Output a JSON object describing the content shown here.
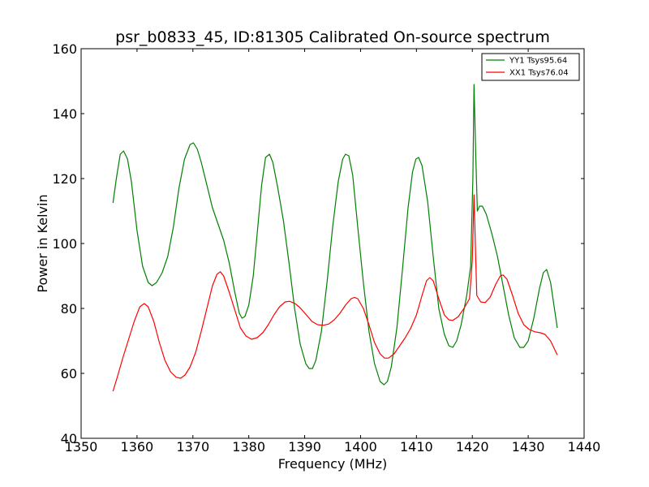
{
  "chart_data": {
    "type": "line",
    "title": "psr_b0833_45, ID:81305 Calibrated On-source spectrum",
    "xlabel": "Frequency (MHz)",
    "ylabel": "Power in Kelvin",
    "xlim": [
      1350,
      1440
    ],
    "ylim": [
      40,
      160
    ],
    "xticks": [
      "1350",
      "1360",
      "1370",
      "1380",
      "1390",
      "1400",
      "1410",
      "1420",
      "1430",
      "1440"
    ],
    "yticks": [
      "40",
      "60",
      "80",
      "100",
      "120",
      "140",
      "160"
    ],
    "grid": false,
    "legend_position": "top-right",
    "series": [
      {
        "name": "YY1 Tsys95.64",
        "color": "#008000",
        "points": [
          [
            1355.7,
            112.5
          ],
          [
            1356.3,
            120
          ],
          [
            1357.0,
            127.5
          ],
          [
            1357.6,
            128.5
          ],
          [
            1358.3,
            126
          ],
          [
            1359.0,
            119
          ],
          [
            1360.0,
            104
          ],
          [
            1361.0,
            93
          ],
          [
            1362.0,
            88
          ],
          [
            1362.7,
            87
          ],
          [
            1363.5,
            88
          ],
          [
            1364.5,
            91
          ],
          [
            1365.5,
            96
          ],
          [
            1366.5,
            105
          ],
          [
            1367.5,
            117
          ],
          [
            1368.5,
            126
          ],
          [
            1369.5,
            130.5
          ],
          [
            1370.1,
            131
          ],
          [
            1370.8,
            129
          ],
          [
            1371.5,
            125
          ],
          [
            1372.5,
            118
          ],
          [
            1373.5,
            111
          ],
          [
            1374.5,
            106
          ],
          [
            1375.5,
            101
          ],
          [
            1376.5,
            94
          ],
          [
            1377.5,
            85
          ],
          [
            1378.3,
            78.5
          ],
          [
            1378.8,
            77
          ],
          [
            1379.3,
            77.5
          ],
          [
            1380.0,
            81
          ],
          [
            1380.8,
            90
          ],
          [
            1381.5,
            103
          ],
          [
            1382.3,
            118
          ],
          [
            1383.0,
            126.5
          ],
          [
            1383.7,
            127.5
          ],
          [
            1384.3,
            125
          ],
          [
            1385.2,
            117
          ],
          [
            1386.2,
            107
          ],
          [
            1387.2,
            94
          ],
          [
            1388.2,
            80
          ],
          [
            1389.2,
            69
          ],
          [
            1390.2,
            63
          ],
          [
            1390.8,
            61.5
          ],
          [
            1391.4,
            61.5
          ],
          [
            1392.0,
            64
          ],
          [
            1393.0,
            73
          ],
          [
            1394.0,
            88
          ],
          [
            1395.0,
            105
          ],
          [
            1396.0,
            119
          ],
          [
            1396.8,
            126
          ],
          [
            1397.3,
            127.5
          ],
          [
            1397.9,
            127
          ],
          [
            1398.6,
            121
          ],
          [
            1399.5,
            105
          ],
          [
            1400.5,
            88
          ],
          [
            1401.5,
            73
          ],
          [
            1402.5,
            63
          ],
          [
            1403.5,
            57.5
          ],
          [
            1404.2,
            56.5
          ],
          [
            1404.8,
            57.5
          ],
          [
            1405.5,
            62
          ],
          [
            1406.5,
            74
          ],
          [
            1407.5,
            92
          ],
          [
            1408.5,
            111
          ],
          [
            1409.3,
            122
          ],
          [
            1409.9,
            126
          ],
          [
            1410.4,
            126.5
          ],
          [
            1411.0,
            124
          ],
          [
            1412.0,
            113
          ],
          [
            1413.0,
            96
          ],
          [
            1414.0,
            80
          ],
          [
            1415.0,
            72
          ],
          [
            1415.8,
            68.5
          ],
          [
            1416.5,
            68
          ],
          [
            1417.2,
            70
          ],
          [
            1418.0,
            75
          ],
          [
            1419.0,
            84
          ],
          [
            1419.7,
            93
          ],
          [
            1420.1,
            120
          ],
          [
            1420.3,
            149
          ],
          [
            1420.6,
            128
          ],
          [
            1420.9,
            110
          ],
          [
            1421.3,
            111.5
          ],
          [
            1421.8,
            111.5
          ],
          [
            1422.5,
            109
          ],
          [
            1423.5,
            103
          ],
          [
            1424.5,
            96
          ],
          [
            1425.5,
            87
          ],
          [
            1426.5,
            78
          ],
          [
            1427.5,
            71
          ],
          [
            1428.5,
            68
          ],
          [
            1429.2,
            68
          ],
          [
            1430.0,
            70
          ],
          [
            1431.0,
            77
          ],
          [
            1432.0,
            86
          ],
          [
            1432.7,
            91
          ],
          [
            1433.3,
            92
          ],
          [
            1434.0,
            88
          ],
          [
            1435.2,
            74
          ]
        ]
      },
      {
        "name": "XX1 Tsys76.04",
        "color": "#ff0000",
        "points": [
          [
            1355.7,
            54.5
          ],
          [
            1356.5,
            59
          ],
          [
            1357.5,
            65
          ],
          [
            1358.5,
            70.5
          ],
          [
            1359.5,
            76
          ],
          [
            1360.5,
            80.5
          ],
          [
            1361.3,
            81.5
          ],
          [
            1362.0,
            80.5
          ],
          [
            1363.0,
            76
          ],
          [
            1364.0,
            69.5
          ],
          [
            1365.0,
            64
          ],
          [
            1366.0,
            60.5
          ],
          [
            1367.0,
            58.8
          ],
          [
            1367.8,
            58.5
          ],
          [
            1368.6,
            59.5
          ],
          [
            1369.5,
            62
          ],
          [
            1370.5,
            66.5
          ],
          [
            1371.5,
            73
          ],
          [
            1372.5,
            80
          ],
          [
            1373.5,
            87
          ],
          [
            1374.3,
            90.5
          ],
          [
            1374.9,
            91.3
          ],
          [
            1375.5,
            90
          ],
          [
            1376.5,
            85
          ],
          [
            1377.5,
            79.5
          ],
          [
            1378.5,
            74
          ],
          [
            1379.5,
            71.5
          ],
          [
            1380.5,
            70.5
          ],
          [
            1381.5,
            71
          ],
          [
            1382.5,
            72.5
          ],
          [
            1383.5,
            75
          ],
          [
            1384.5,
            78
          ],
          [
            1385.5,
            80.5
          ],
          [
            1386.5,
            82
          ],
          [
            1387.3,
            82.2
          ],
          [
            1388.3,
            81.5
          ],
          [
            1389.3,
            80
          ],
          [
            1390.3,
            78
          ],
          [
            1391.3,
            76
          ],
          [
            1392.3,
            75
          ],
          [
            1393.3,
            74.8
          ],
          [
            1394.3,
            75.2
          ],
          [
            1395.3,
            76.5
          ],
          [
            1396.3,
            78.5
          ],
          [
            1397.3,
            81
          ],
          [
            1398.3,
            83
          ],
          [
            1398.9,
            83.4
          ],
          [
            1399.5,
            83
          ],
          [
            1400.5,
            80
          ],
          [
            1401.5,
            75
          ],
          [
            1402.5,
            69.5
          ],
          [
            1403.5,
            66
          ],
          [
            1404.3,
            64.7
          ],
          [
            1405.0,
            64.7
          ],
          [
            1406.0,
            66
          ],
          [
            1407.0,
            68.5
          ],
          [
            1408.0,
            71
          ],
          [
            1409.0,
            74
          ],
          [
            1410.0,
            78
          ],
          [
            1411.0,
            84
          ],
          [
            1411.8,
            88.5
          ],
          [
            1412.4,
            89.5
          ],
          [
            1413.0,
            88.5
          ],
          [
            1414.0,
            83
          ],
          [
            1415.0,
            78
          ],
          [
            1415.8,
            76.5
          ],
          [
            1416.5,
            76.3
          ],
          [
            1417.5,
            77.5
          ],
          [
            1418.5,
            80
          ],
          [
            1419.5,
            83
          ],
          [
            1420.0,
            95
          ],
          [
            1420.3,
            115
          ],
          [
            1420.6,
            96
          ],
          [
            1420.8,
            84
          ],
          [
            1421.5,
            82
          ],
          [
            1422.3,
            81.8
          ],
          [
            1423.2,
            83.5
          ],
          [
            1424.2,
            87.5
          ],
          [
            1425.0,
            90
          ],
          [
            1425.5,
            90.3
          ],
          [
            1426.2,
            89
          ],
          [
            1427.2,
            84
          ],
          [
            1428.2,
            78.5
          ],
          [
            1429.2,
            75
          ],
          [
            1430.2,
            73.5
          ],
          [
            1431.2,
            72.8
          ],
          [
            1432.2,
            72.5
          ],
          [
            1433.0,
            72
          ],
          [
            1434.0,
            70
          ],
          [
            1435.2,
            65.7
          ]
        ]
      }
    ]
  }
}
